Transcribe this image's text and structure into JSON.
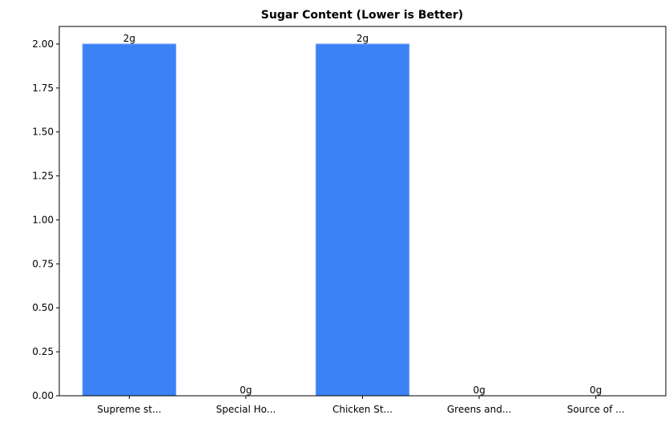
{
  "chart_data": {
    "type": "bar",
    "title": "Sugar Content (Lower is Better)",
    "xlabel": "",
    "ylabel": "",
    "categories": [
      "Supreme st...",
      "Special Ho...",
      "Chicken St...",
      "Greens and...",
      "Source of ..."
    ],
    "values": [
      2,
      0,
      2,
      0,
      0
    ],
    "data_labels": [
      "2g",
      "0g",
      "2g",
      "0g",
      "0g"
    ],
    "ylim": [
      0,
      2.1
    ],
    "yticks": [
      "0.00",
      "0.25",
      "0.50",
      "0.75",
      "1.00",
      "1.25",
      "1.50",
      "1.75",
      "2.00"
    ],
    "grid": false,
    "legend": "none",
    "bar_color": "#3b82f6"
  }
}
